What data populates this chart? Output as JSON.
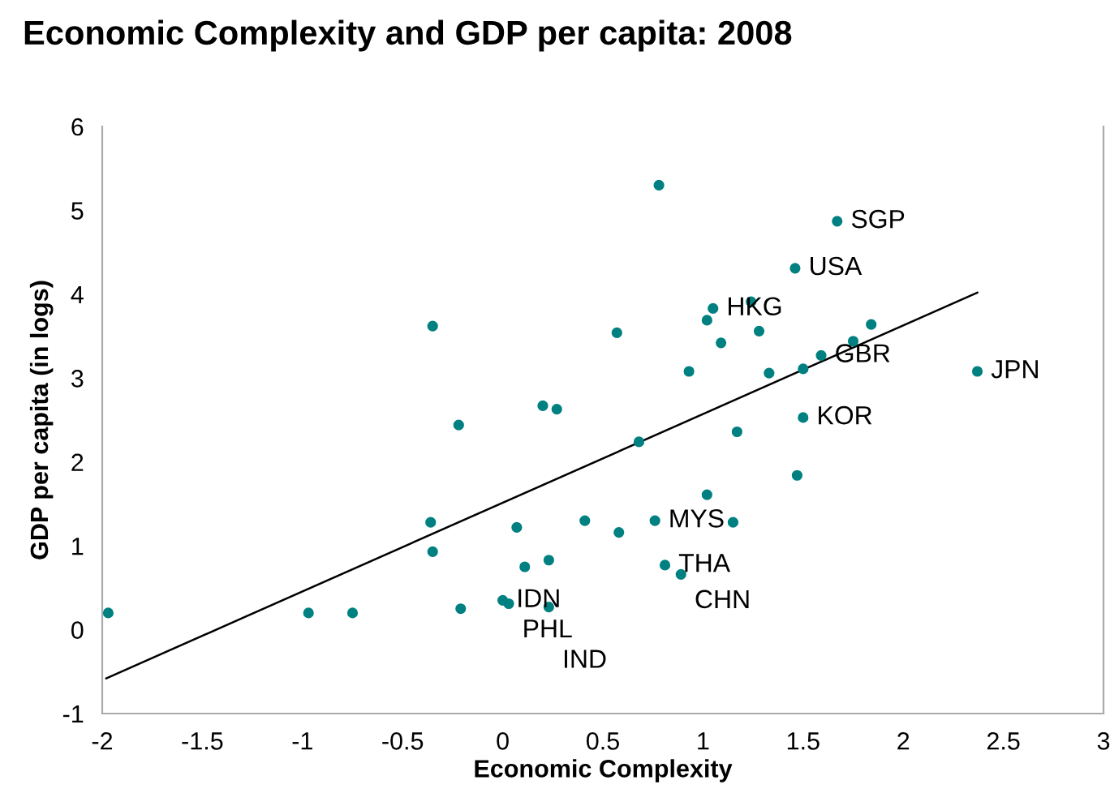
{
  "chart_data": {
    "type": "scatter",
    "title": "Economic Complexity and GDP per capita: 2008",
    "xlabel": "Economic Complexity",
    "ylabel": "GDP per capita (in logs)",
    "xlim": [
      -2,
      3
    ],
    "xticks": [
      -2,
      -1.5,
      -1,
      -0.5,
      0,
      0.5,
      1,
      1.5,
      2,
      2.5,
      3
    ],
    "ylim": [
      -1,
      6
    ],
    "yticks": [
      -1,
      0,
      1,
      2,
      3,
      4,
      5,
      6
    ],
    "grid": false,
    "legend": false,
    "marker": "circle",
    "series": [
      {
        "color": "#008080",
        "x": [
          -1.97,
          -0.97,
          -0.75,
          -0.35,
          -0.36,
          -0.35,
          -0.22,
          -0.21,
          0.0,
          0.03,
          0.07,
          0.11,
          0.2,
          0.23,
          0.27,
          0.23,
          0.41,
          0.58,
          0.76,
          0.81,
          0.89,
          1.02,
          1.15,
          1.47,
          0.78,
          0.57,
          1.46,
          1.05,
          1.24,
          1.02,
          1.28,
          1.09,
          0.93,
          1.33,
          0.68,
          1.17,
          1.67,
          1.84,
          1.75,
          1.59,
          1.5,
          2.37,
          1.5
        ],
        "values": [
          0.2,
          0.2,
          0.2,
          3.62,
          1.28,
          0.93,
          2.44,
          0.25,
          0.35,
          0.31,
          1.22,
          0.75,
          2.67,
          0.83,
          2.63,
          0.27,
          1.3,
          1.16,
          1.3,
          0.77,
          0.66,
          1.61,
          1.28,
          1.84,
          5.3,
          3.54,
          4.31,
          3.83,
          3.91,
          3.69,
          3.56,
          3.42,
          3.08,
          3.06,
          2.24,
          2.36,
          4.87,
          3.64,
          3.44,
          3.27,
          3.11,
          3.08,
          2.53
        ]
      },
      {
        "type": "line",
        "color": "#000000",
        "marker": "none",
        "x": [
          -1.98,
          2.37
        ],
        "values": [
          -0.58,
          4.02
        ]
      }
    ],
    "annotations": [
      {
        "text": "SGP",
        "x": 1.67,
        "y": 4.87
      },
      {
        "text": "USA",
        "x": 1.46,
        "y": 4.31
      },
      {
        "text": "HKG",
        "x": 1.05,
        "y": 3.83
      },
      {
        "text": "GBR",
        "x": 1.59,
        "y": 3.27
      },
      {
        "text": "JPN",
        "x": 2.37,
        "y": 3.08
      },
      {
        "text": "KOR",
        "x": 1.5,
        "y": 2.53
      },
      {
        "text": "MYS",
        "x": 0.76,
        "y": 1.3
      },
      {
        "text": "THA",
        "x": 0.81,
        "y": 0.77
      },
      {
        "text": "CHN",
        "x": 0.89,
        "y": 0.66
      },
      {
        "text": "IDN",
        "x": 0.0,
        "y": 0.35
      },
      {
        "text": "PHL",
        "x": 0.03,
        "y": 0.31
      },
      {
        "text": "IND",
        "x": 0.23,
        "y": 0.27
      }
    ]
  }
}
